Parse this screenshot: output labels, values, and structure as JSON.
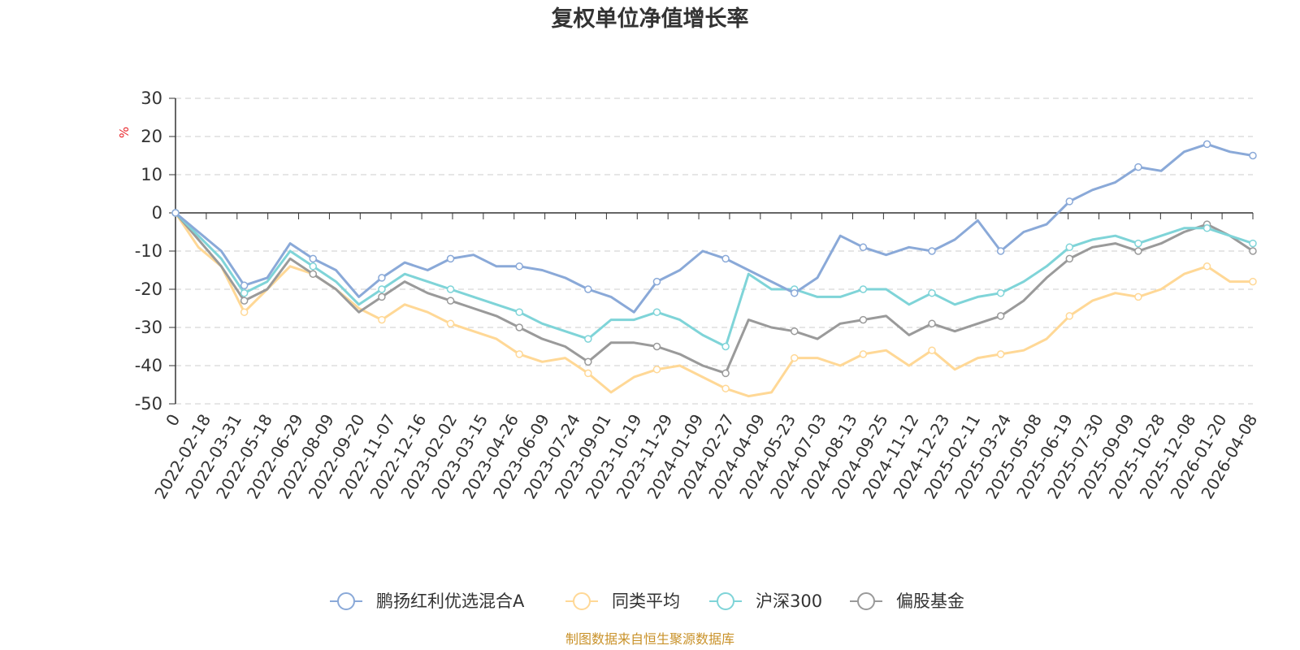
{
  "chart_data": {
    "type": "line",
    "title": "复权单位净值增长率",
    "ylabel": "%",
    "xlabel": "",
    "ylim": [
      -50,
      30
    ],
    "yticks": [
      30,
      20,
      10,
      0,
      -10,
      -20,
      -30,
      -40,
      -50
    ],
    "grid": true,
    "legend_position": "bottom",
    "x_tick_labels": [
      "0",
      "2022-02-18",
      "2022-03-31",
      "2022-05-18",
      "2022-06-29",
      "2022-08-09",
      "2022-09-20",
      "2022-11-07",
      "2022-12-16",
      "2023-02-02",
      "2023-03-15",
      "2023-04-26",
      "2023-06-09",
      "2023-07-24",
      "2023-09-01",
      "2023-10-19",
      "2023-11-29",
      "2024-01-09",
      "2024-02-27",
      "2024-04-09",
      "2024-05-23",
      "2024-07-03",
      "2024-08-13",
      "2024-09-25",
      "2024-11-12",
      "2024-12-23",
      "2025-02-11",
      "2025-03-24",
      "2025-05-08",
      "2025-06-19",
      "2025-07-30",
      "2025-09-09",
      "2025-10-28",
      "2025-12-08",
      "2026-01-20",
      "2026-04-08"
    ],
    "series": [
      {
        "name": "鹏扬红利优选混合A",
        "color": "#8aa9d8",
        "values": [
          0,
          -5,
          -10,
          -19,
          -17,
          -8,
          -12,
          -15,
          -22,
          -17,
          -13,
          -15,
          -12,
          -11,
          -14,
          -14,
          -15,
          -17,
          -20,
          -22,
          -26,
          -18,
          -15,
          -10,
          -12,
          -15,
          -18,
          -21,
          -17,
          -6,
          -9,
          -11,
          -9,
          -10,
          -7,
          -2,
          -10,
          -5,
          -3,
          3,
          6,
          8,
          12,
          11,
          16,
          18,
          16,
          15
        ]
      },
      {
        "name": "同类平均",
        "color": "#ffd896",
        "values": [
          0,
          -9,
          -14,
          -26,
          -20,
          -14,
          -16,
          -20,
          -25,
          -28,
          -24,
          -26,
          -29,
          -31,
          -33,
          -37,
          -39,
          -38,
          -42,
          -47,
          -43,
          -41,
          -40,
          -43,
          -46,
          -48,
          -47,
          -38,
          -38,
          -40,
          -37,
          -36,
          -40,
          -36,
          -41,
          -38,
          -37,
          -36,
          -33,
          -27,
          -23,
          -21,
          -22,
          -20,
          -16,
          -14,
          -18,
          -18
        ]
      },
      {
        "name": "沪深300",
        "color": "#7fd4d8",
        "values": [
          0,
          -6,
          -12,
          -21,
          -18,
          -10,
          -14,
          -18,
          -24,
          -20,
          -16,
          -18,
          -20,
          -22,
          -24,
          -26,
          -29,
          -31,
          -33,
          -28,
          -28,
          -26,
          -28,
          -32,
          -35,
          -16,
          -20,
          -20,
          -22,
          -22,
          -20,
          -20,
          -24,
          -21,
          -24,
          -22,
          -21,
          -18,
          -14,
          -9,
          -7,
          -6,
          -8,
          -6,
          -4,
          -4,
          -6,
          -8
        ]
      },
      {
        "name": "偏股基金",
        "color": "#9a9a9a",
        "values": [
          0,
          -7,
          -14,
          -23,
          -20,
          -12,
          -16,
          -20,
          -26,
          -22,
          -18,
          -21,
          -23,
          -25,
          -27,
          -30,
          -33,
          -35,
          -39,
          -34,
          -34,
          -35,
          -37,
          -40,
          -42,
          -28,
          -30,
          -31,
          -33,
          -29,
          -28,
          -27,
          -32,
          -29,
          -31,
          -29,
          -27,
          -23,
          -17,
          -12,
          -9,
          -8,
          -10,
          -8,
          -5,
          -3,
          -6,
          -10
        ]
      }
    ]
  },
  "legend": [
    {
      "label": "鹏扬红利优选混合A",
      "color": "#8aa9d8"
    },
    {
      "label": "同类平均",
      "color": "#ffd896"
    },
    {
      "label": "沪深300",
      "color": "#7fd4d8"
    },
    {
      "label": "偏股基金",
      "color": "#9a9a9a"
    }
  ],
  "source_text": "制图数据来自恒生聚源数据库"
}
